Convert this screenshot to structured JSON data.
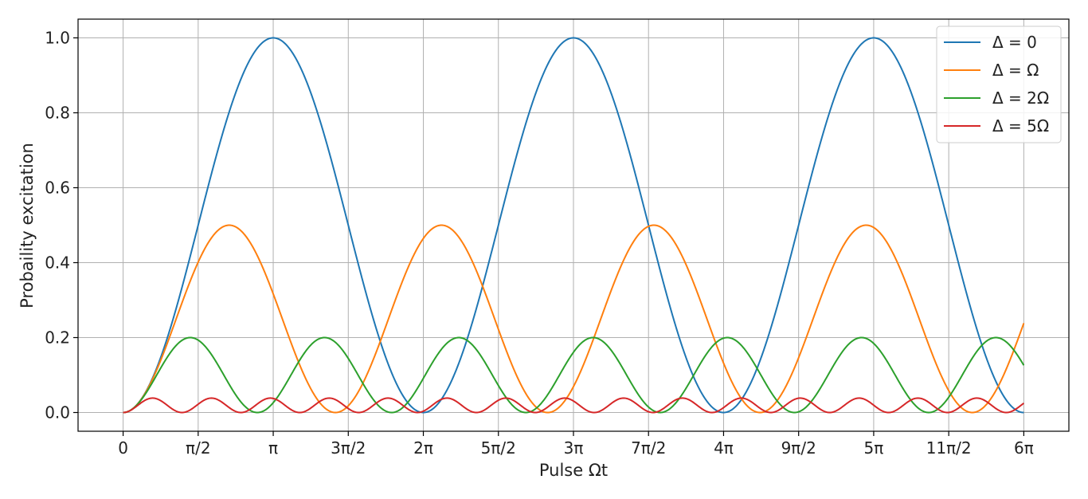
{
  "chart_data": {
    "type": "line",
    "title": "",
    "xlabel": "Pulse Ωt",
    "ylabel": "Probaility excitation",
    "xlim": [
      -0.943,
      19.793
    ],
    "ylim": [
      -0.05,
      1.05
    ],
    "grid": true,
    "legend_position": "top-right",
    "x_ticks": [
      {
        "value": 0,
        "label": "0"
      },
      {
        "value": 1.5708,
        "label": "π/2"
      },
      {
        "value": 3.1416,
        "label": "π"
      },
      {
        "value": 4.7124,
        "label": "3π/2"
      },
      {
        "value": 6.2832,
        "label": "2π"
      },
      {
        "value": 7.854,
        "label": "5π/2"
      },
      {
        "value": 9.4248,
        "label": "3π"
      },
      {
        "value": 10.9956,
        "label": "7π/2"
      },
      {
        "value": 12.5664,
        "label": "4π"
      },
      {
        "value": 14.1372,
        "label": "9π/2"
      },
      {
        "value": 15.708,
        "label": "5π"
      },
      {
        "value": 17.2788,
        "label": "11π/2"
      },
      {
        "value": 18.8496,
        "label": "6π"
      }
    ],
    "y_ticks": [
      {
        "value": 0.0,
        "label": "0.0"
      },
      {
        "value": 0.2,
        "label": "0.2"
      },
      {
        "value": 0.4,
        "label": "0.4"
      },
      {
        "value": 0.6,
        "label": "0.6"
      },
      {
        "value": 0.8,
        "label": "0.8"
      },
      {
        "value": 1.0,
        "label": "1.0"
      }
    ],
    "x_range": [
      0,
      18.8496
    ],
    "series": [
      {
        "name": "Δ = 0",
        "detuning_ratio": 0,
        "color": "#1f77b4"
      },
      {
        "name": "Δ = Ω",
        "detuning_ratio": 1,
        "color": "#ff7f0e"
      },
      {
        "name": "Δ = 2Ω",
        "detuning_ratio": 2,
        "color": "#2ca02c"
      },
      {
        "name": "Δ = 5Ω",
        "detuning_ratio": 5,
        "color": "#d62728"
      }
    ]
  }
}
